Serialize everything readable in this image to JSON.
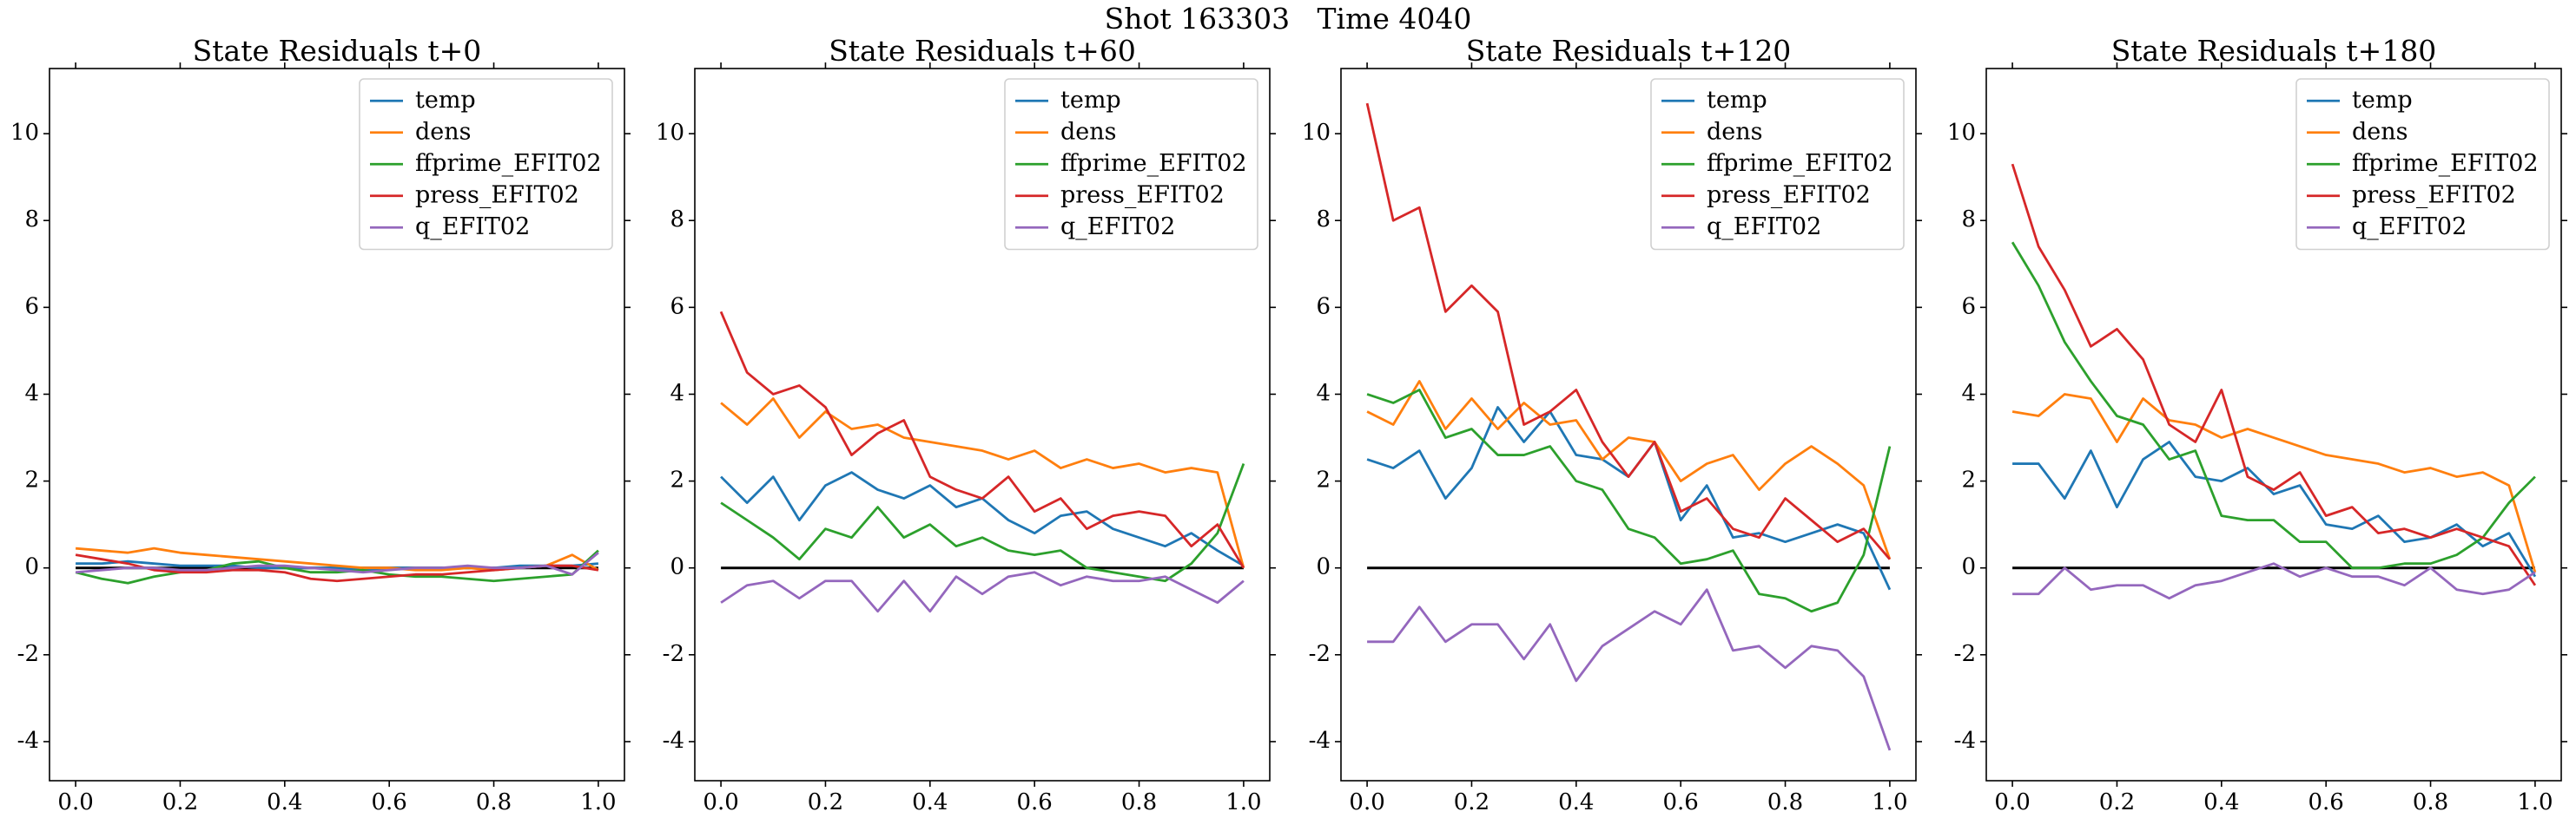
{
  "title": "Shot 163303   Time 4040",
  "chart_data": [
    {
      "type": "line",
      "title": "State Residuals t+0",
      "x": [
        0,
        0.05,
        0.1,
        0.15,
        0.2,
        0.25,
        0.3,
        0.35,
        0.4,
        0.45,
        0.5,
        0.55,
        0.6,
        0.65,
        0.7,
        0.75,
        0.8,
        0.85,
        0.9,
        0.95,
        1.0
      ],
      "series": [
        {
          "name": "temp",
          "color": "#1f77b4",
          "values": [
            0.1,
            0.1,
            0.15,
            0.1,
            0.05,
            0.05,
            0.05,
            0.0,
            0.0,
            0.0,
            0.0,
            -0.05,
            0.0,
            0.0,
            0.0,
            0.0,
            0.0,
            0.05,
            0.05,
            0.05,
            0.1
          ]
        },
        {
          "name": "dens",
          "color": "#ff7f0e",
          "values": [
            0.45,
            0.4,
            0.35,
            0.45,
            0.35,
            0.3,
            0.25,
            0.2,
            0.15,
            0.1,
            0.05,
            0.0,
            0.0,
            -0.05,
            -0.05,
            0.0,
            -0.05,
            0.0,
            0.05,
            0.3,
            -0.05
          ]
        },
        {
          "name": "ffprime_EFIT02",
          "color": "#2ca02c",
          "values": [
            -0.1,
            -0.25,
            -0.35,
            -0.2,
            -0.1,
            -0.05,
            0.1,
            0.15,
            0.0,
            -0.1,
            -0.1,
            -0.05,
            -0.15,
            -0.2,
            -0.2,
            -0.25,
            -0.3,
            -0.25,
            -0.2,
            -0.15,
            0.4
          ]
        },
        {
          "name": "press_EFIT02",
          "color": "#d62728",
          "values": [
            0.3,
            0.2,
            0.1,
            -0.05,
            -0.1,
            -0.1,
            -0.05,
            -0.05,
            -0.1,
            -0.25,
            -0.3,
            -0.25,
            -0.2,
            -0.15,
            -0.15,
            -0.1,
            -0.05,
            0.0,
            0.05,
            0.05,
            -0.05
          ]
        },
        {
          "name": "q_EFIT02",
          "color": "#9467bd",
          "values": [
            -0.1,
            -0.05,
            0.0,
            0.0,
            -0.05,
            -0.05,
            0.0,
            0.05,
            0.05,
            0.0,
            -0.05,
            -0.1,
            -0.05,
            0.0,
            0.0,
            0.05,
            0.0,
            0.0,
            0.05,
            -0.15,
            0.35
          ]
        }
      ],
      "reference_line": 0,
      "xlim": [
        -0.05,
        1.05
      ],
      "ylim": [
        -4.9,
        11.5
      ],
      "xticks": [
        {
          "value": 0,
          "label": "0.0"
        },
        0.2,
        0.4,
        0.6,
        0.8,
        {
          "value": 1,
          "label": "1.0"
        }
      ],
      "yticks": [
        -4,
        -2,
        0,
        2,
        4,
        6,
        8,
        10
      ],
      "legend": "upper right"
    },
    {
      "type": "line",
      "title": "State Residuals t+60",
      "x": [
        0,
        0.05,
        0.1,
        0.15,
        0.2,
        0.25,
        0.3,
        0.35,
        0.4,
        0.45,
        0.5,
        0.55,
        0.6,
        0.65,
        0.7,
        0.75,
        0.8,
        0.85,
        0.9,
        0.95,
        1.0
      ],
      "series": [
        {
          "name": "temp",
          "color": "#1f77b4",
          "values": [
            2.1,
            1.5,
            2.1,
            1.1,
            1.9,
            2.2,
            1.8,
            1.6,
            1.9,
            1.4,
            1.6,
            1.1,
            0.8,
            1.2,
            1.3,
            0.9,
            0.7,
            0.5,
            0.8,
            0.4,
            0.05
          ]
        },
        {
          "name": "dens",
          "color": "#ff7f0e",
          "values": [
            3.8,
            3.3,
            3.9,
            3.0,
            3.6,
            3.2,
            3.3,
            3.0,
            2.9,
            2.8,
            2.7,
            2.5,
            2.7,
            2.3,
            2.5,
            2.3,
            2.4,
            2.2,
            2.3,
            2.2,
            0.0
          ]
        },
        {
          "name": "ffprime_EFIT02",
          "color": "#2ca02c",
          "values": [
            1.5,
            1.1,
            0.7,
            0.2,
            0.9,
            0.7,
            1.4,
            0.7,
            1.0,
            0.5,
            0.7,
            0.4,
            0.3,
            0.4,
            0.0,
            -0.1,
            -0.2,
            -0.3,
            0.1,
            0.8,
            2.4
          ]
        },
        {
          "name": "press_EFIT02",
          "color": "#d62728",
          "values": [
            5.9,
            4.5,
            4.0,
            4.2,
            3.7,
            2.6,
            3.1,
            3.4,
            2.1,
            1.8,
            1.6,
            2.1,
            1.3,
            1.6,
            0.9,
            1.2,
            1.3,
            1.2,
            0.5,
            1.0,
            0.0
          ]
        },
        {
          "name": "q_EFIT02",
          "color": "#9467bd",
          "values": [
            -0.8,
            -0.4,
            -0.3,
            -0.7,
            -0.3,
            -0.3,
            -1.0,
            -0.3,
            -1.0,
            -0.2,
            -0.6,
            -0.2,
            -0.1,
            -0.4,
            -0.2,
            -0.3,
            -0.3,
            -0.2,
            -0.5,
            -0.8,
            -0.3
          ]
        }
      ],
      "reference_line": 0,
      "xlim": [
        -0.05,
        1.05
      ],
      "ylim": [
        -4.9,
        11.5
      ],
      "xticks": [
        {
          "value": 0,
          "label": "0.0"
        },
        0.2,
        0.4,
        0.6,
        0.8,
        {
          "value": 1,
          "label": "1.0"
        }
      ],
      "yticks": [
        -4,
        -2,
        0,
        2,
        4,
        6,
        8,
        10
      ],
      "legend": "upper right"
    },
    {
      "type": "line",
      "title": "State Residuals t+120",
      "x": [
        0,
        0.05,
        0.1,
        0.15,
        0.2,
        0.25,
        0.3,
        0.35,
        0.4,
        0.45,
        0.5,
        0.55,
        0.6,
        0.65,
        0.7,
        0.75,
        0.8,
        0.85,
        0.9,
        0.95,
        1.0
      ],
      "series": [
        {
          "name": "temp",
          "color": "#1f77b4",
          "values": [
            2.5,
            2.3,
            2.7,
            1.6,
            2.3,
            3.7,
            2.9,
            3.6,
            2.6,
            2.5,
            2.1,
            2.9,
            1.1,
            1.9,
            0.7,
            0.8,
            0.6,
            0.8,
            1.0,
            0.8,
            -0.5
          ]
        },
        {
          "name": "dens",
          "color": "#ff7f0e",
          "values": [
            3.6,
            3.3,
            4.3,
            3.2,
            3.9,
            3.2,
            3.8,
            3.3,
            3.4,
            2.5,
            3.0,
            2.9,
            2.0,
            2.4,
            2.6,
            1.8,
            2.4,
            2.8,
            2.4,
            1.9,
            0.2
          ]
        },
        {
          "name": "ffprime_EFIT02",
          "color": "#2ca02c",
          "values": [
            4.0,
            3.8,
            4.1,
            3.0,
            3.2,
            2.6,
            2.6,
            2.8,
            2.0,
            1.8,
            0.9,
            0.7,
            0.1,
            0.2,
            0.4,
            -0.6,
            -0.7,
            -1.0,
            -0.8,
            0.3,
            2.8
          ]
        },
        {
          "name": "press_EFIT02",
          "color": "#d62728",
          "values": [
            10.7,
            8.0,
            8.3,
            5.9,
            6.5,
            5.9,
            3.3,
            3.6,
            4.1,
            2.9,
            2.1,
            2.9,
            1.3,
            1.6,
            0.9,
            0.7,
            1.6,
            1.1,
            0.6,
            0.9,
            0.2
          ]
        },
        {
          "name": "q_EFIT02",
          "color": "#9467bd",
          "values": [
            -1.7,
            -1.7,
            -0.9,
            -1.7,
            -1.3,
            -1.3,
            -2.1,
            -1.3,
            -2.6,
            -1.8,
            -1.4,
            -1.0,
            -1.3,
            -0.5,
            -1.9,
            -1.8,
            -2.3,
            -1.8,
            -1.9,
            -2.5,
            -4.2
          ]
        }
      ],
      "reference_line": 0,
      "xlim": [
        -0.05,
        1.05
      ],
      "ylim": [
        -4.9,
        11.5
      ],
      "xticks": [
        {
          "value": 0,
          "label": "0.0"
        },
        0.2,
        0.4,
        0.6,
        0.8,
        {
          "value": 1,
          "label": "1.0"
        }
      ],
      "yticks": [
        -4,
        -2,
        0,
        2,
        4,
        6,
        8,
        10
      ],
      "legend": "upper right"
    },
    {
      "type": "line",
      "title": "State Residuals t+180",
      "x": [
        0,
        0.05,
        0.1,
        0.15,
        0.2,
        0.25,
        0.3,
        0.35,
        0.4,
        0.45,
        0.5,
        0.55,
        0.6,
        0.65,
        0.7,
        0.75,
        0.8,
        0.85,
        0.9,
        0.95,
        1.0
      ],
      "series": [
        {
          "name": "temp",
          "color": "#1f77b4",
          "values": [
            2.4,
            2.4,
            1.6,
            2.7,
            1.4,
            2.5,
            2.9,
            2.1,
            2.0,
            2.3,
            1.7,
            1.9,
            1.0,
            0.9,
            1.2,
            0.6,
            0.7,
            1.0,
            0.5,
            0.8,
            -0.2
          ]
        },
        {
          "name": "dens",
          "color": "#ff7f0e",
          "values": [
            3.6,
            3.5,
            4.0,
            3.9,
            2.9,
            3.9,
            3.4,
            3.3,
            3.0,
            3.2,
            3.0,
            2.8,
            2.6,
            2.5,
            2.4,
            2.2,
            2.3,
            2.1,
            2.2,
            1.9,
            -0.1
          ]
        },
        {
          "name": "ffprime_EFIT02",
          "color": "#2ca02c",
          "values": [
            7.5,
            6.5,
            5.2,
            4.3,
            3.5,
            3.3,
            2.5,
            2.7,
            1.2,
            1.1,
            1.1,
            0.6,
            0.6,
            0.0,
            0.0,
            0.1,
            0.1,
            0.3,
            0.7,
            1.5,
            2.1
          ]
        },
        {
          "name": "press_EFIT02",
          "color": "#d62728",
          "values": [
            9.3,
            7.4,
            6.4,
            5.1,
            5.5,
            4.8,
            3.3,
            2.9,
            4.1,
            2.1,
            1.8,
            2.2,
            1.2,
            1.4,
            0.8,
            0.9,
            0.7,
            0.9,
            0.7,
            0.5,
            -0.4
          ]
        },
        {
          "name": "q_EFIT02",
          "color": "#9467bd",
          "values": [
            -0.6,
            -0.6,
            0.0,
            -0.5,
            -0.4,
            -0.4,
            -0.7,
            -0.4,
            -0.3,
            -0.1,
            0.1,
            -0.2,
            0.0,
            -0.2,
            -0.2,
            -0.4,
            0.0,
            -0.5,
            -0.6,
            -0.5,
            -0.1
          ]
        }
      ],
      "reference_line": 0,
      "xlim": [
        -0.05,
        1.05
      ],
      "ylim": [
        -4.9,
        11.5
      ],
      "xticks": [
        {
          "value": 0,
          "label": "0.0"
        },
        0.2,
        0.4,
        0.6,
        0.8,
        {
          "value": 1,
          "label": "1.0"
        }
      ],
      "yticks": [
        -4,
        -2,
        0,
        2,
        4,
        6,
        8,
        10
      ],
      "legend": "upper right"
    }
  ]
}
